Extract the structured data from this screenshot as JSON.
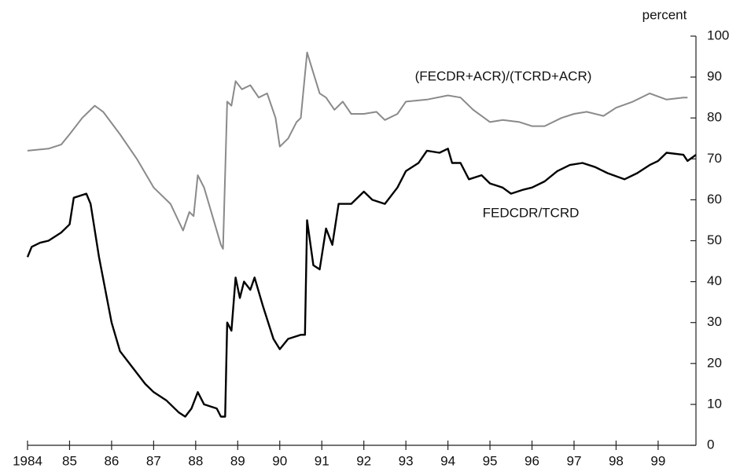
{
  "chart_data": {
    "type": "line",
    "y_label": "percent",
    "xlim": [
      1984,
      1999.9
    ],
    "xticks": [
      1984,
      {
        "value": 1985,
        "label": "85"
      },
      {
        "value": 1986,
        "label": "86"
      },
      {
        "value": 1987,
        "label": "87"
      },
      {
        "value": 1988,
        "label": "88"
      },
      {
        "value": 1989,
        "label": "89"
      },
      {
        "value": 1990,
        "label": "90"
      },
      {
        "value": 1991,
        "label": "91"
      },
      {
        "value": 1992,
        "label": "92"
      },
      {
        "value": 1993,
        "label": "93"
      },
      {
        "value": 1994,
        "label": "94"
      },
      {
        "value": 1995,
        "label": "95"
      },
      {
        "value": 1996,
        "label": "96"
      },
      {
        "value": 1997,
        "label": "97"
      },
      {
        "value": 1998,
        "label": "98"
      },
      {
        "value": 1999,
        "label": "99"
      }
    ],
    "ylim": [
      0,
      100
    ],
    "yticks": [
      0,
      10,
      20,
      30,
      40,
      50,
      60,
      70,
      80,
      90,
      100
    ],
    "series": [
      {
        "name": "(FECDR+ACR)/(TCRD+ACR)",
        "color": "#8a8a8a",
        "x": [
          1984.0,
          1984.5,
          1984.8,
          1985.0,
          1985.3,
          1985.6,
          1985.8,
          1986.2,
          1986.6,
          1987.0,
          1987.4,
          1987.7,
          1987.85,
          1987.95,
          1988.05,
          1988.2,
          1988.4,
          1988.6,
          1988.65,
          1988.75,
          1988.85,
          1988.95,
          1989.1,
          1989.3,
          1989.5,
          1989.7,
          1989.9,
          1990.0,
          1990.2,
          1990.4,
          1990.5,
          1990.65,
          1990.8,
          1990.95,
          1991.1,
          1991.3,
          1991.5,
          1991.7,
          1992.0,
          1992.3,
          1992.5,
          1992.8,
          1993.0,
          1993.5,
          1994.0,
          1994.3,
          1994.6,
          1995.0,
          1995.3,
          1995.7,
          1996.0,
          1996.3,
          1996.7,
          1997.0,
          1997.3,
          1997.7,
          1998.0,
          1998.4,
          1998.8,
          1999.2,
          1999.6,
          1999.7
        ],
        "values": [
          72,
          72.5,
          73.5,
          76,
          80,
          83,
          81.5,
          76,
          70,
          63,
          59,
          52.5,
          57,
          56,
          66,
          63,
          56,
          49,
          48,
          84,
          83,
          89,
          87,
          88,
          85,
          86,
          80,
          73,
          75,
          79,
          80,
          96,
          91,
          86,
          85,
          82,
          84,
          81,
          81,
          81.5,
          79.5,
          81,
          84,
          84.5,
          85.5,
          85,
          82,
          79,
          79.5,
          79,
          78,
          78,
          80,
          81,
          81.5,
          80.5,
          82.5,
          84,
          86,
          84.5,
          85,
          85
        ]
      },
      {
        "name": "FEDCDR/TCRD",
        "color": "#000000",
        "x": [
          1984.0,
          1984.1,
          1984.3,
          1984.5,
          1984.8,
          1985.0,
          1985.1,
          1985.4,
          1985.5,
          1985.7,
          1986.0,
          1986.2,
          1986.5,
          1986.8,
          1987.0,
          1987.3,
          1987.6,
          1987.75,
          1987.9,
          1988.05,
          1988.2,
          1988.5,
          1988.6,
          1988.7,
          1988.75,
          1988.85,
          1988.95,
          1989.05,
          1989.15,
          1989.3,
          1989.4,
          1989.6,
          1989.85,
          1990.0,
          1990.2,
          1990.5,
          1990.6,
          1990.65,
          1990.8,
          1990.95,
          1991.1,
          1991.25,
          1991.4,
          1991.7,
          1992.0,
          1992.2,
          1992.5,
          1992.8,
          1993.0,
          1993.3,
          1993.5,
          1993.8,
          1994.0,
          1994.1,
          1994.3,
          1994.5,
          1994.8,
          1995.0,
          1995.3,
          1995.5,
          1995.8,
          1996.0,
          1996.3,
          1996.6,
          1996.9,
          1997.2,
          1997.5,
          1997.8,
          1998.2,
          1998.5,
          1998.8,
          1999.0,
          1999.2,
          1999.6,
          1999.7,
          1999.9
        ],
        "values": [
          46,
          48.5,
          49.5,
          50,
          52,
          54,
          60.5,
          61.5,
          59,
          46,
          30,
          23,
          19,
          15,
          13,
          11,
          8,
          7,
          9,
          13,
          10,
          9,
          7,
          7,
          30,
          28,
          41,
          36,
          40,
          38,
          41,
          34,
          26,
          23.5,
          26,
          27,
          27,
          55,
          44,
          43,
          53,
          49,
          59,
          59,
          62,
          60,
          59,
          63,
          67,
          69,
          72,
          71.5,
          72.5,
          69,
          69,
          65,
          66,
          64,
          63,
          61.5,
          62.5,
          63,
          64.5,
          67,
          68.5,
          69,
          68,
          66.5,
          65,
          66.5,
          68.5,
          69.5,
          71.5,
          71,
          69.5,
          71
        ]
      }
    ]
  }
}
